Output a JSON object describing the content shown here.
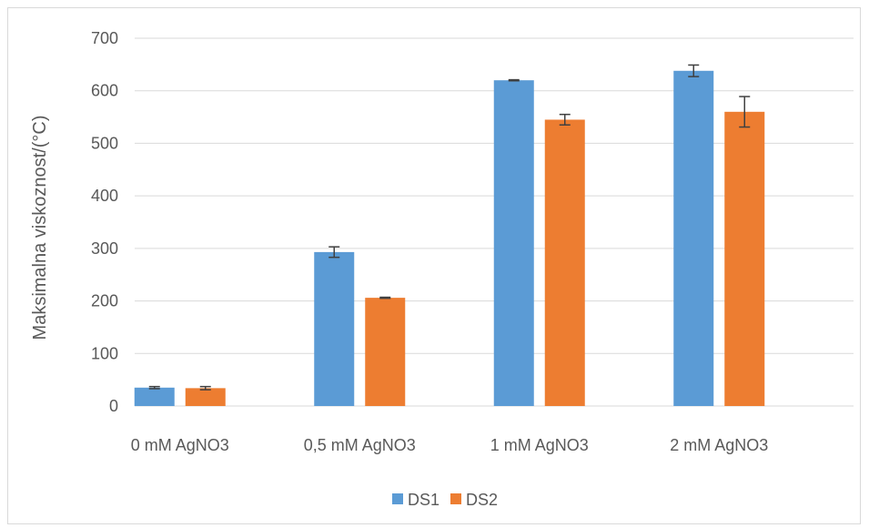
{
  "chart_data": {
    "type": "bar",
    "title": "",
    "xlabel": "",
    "ylabel": "Maksimalna viskoznost/(°C)",
    "ylim": [
      0,
      700
    ],
    "yticks": [
      0,
      100,
      200,
      300,
      400,
      500,
      600,
      700
    ],
    "categories": [
      "0 mM AgNO3",
      "0,5 mM AgNO3",
      "1 mM AgNO3",
      "2 mM AgNO3"
    ],
    "series": [
      {
        "name": "DS1",
        "color": "#5b9bd5",
        "values": [
          35,
          293,
          620,
          638
        ],
        "errors": [
          2,
          10,
          1,
          11
        ]
      },
      {
        "name": "DS2",
        "color": "#ed7d31",
        "values": [
          34,
          206,
          545,
          560
        ],
        "errors": [
          3,
          1,
          10,
          29
        ]
      }
    ],
    "grid": true,
    "legend_position": "bottom"
  }
}
